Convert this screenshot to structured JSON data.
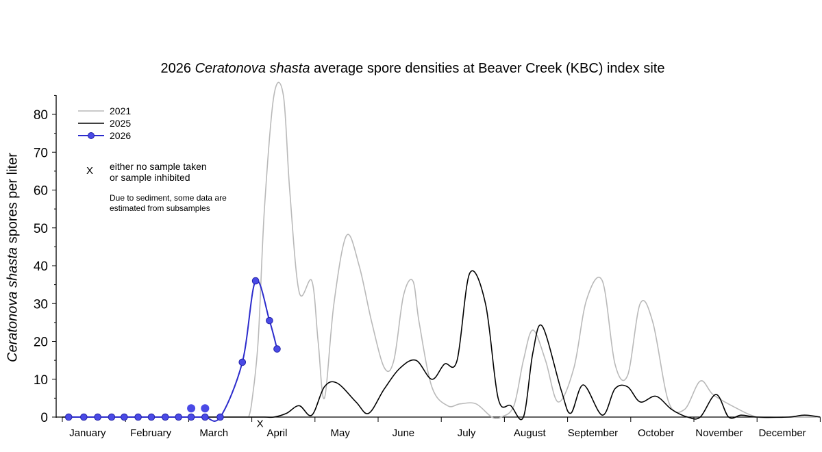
{
  "chart_data": {
    "type": "line",
    "title_parts": {
      "pre": "2026 ",
      "italic": "Ceratonova shasta",
      "post": " average spore densities at Beaver Creek (KBC) index site"
    },
    "ylabel_parts": {
      "italic": "Ceratonova shasta",
      "post": " spores per liter"
    },
    "ylim": [
      0,
      85
    ],
    "yticks": [
      0,
      10,
      20,
      30,
      40,
      50,
      60,
      70,
      80
    ],
    "x_range": [
      0,
      12
    ],
    "x_unit": "months from January 1 (0 = Jan 1, 12 = Dec 31)",
    "months": [
      "January",
      "February",
      "March",
      "April",
      "May",
      "June",
      "July",
      "August",
      "September",
      "October",
      "November",
      "December"
    ],
    "legend": {
      "l2021": "2021",
      "l2025": "2025",
      "l2026": "2026"
    },
    "notes": {
      "x_line1": "either no sample taken",
      "x_line2": "or sample inhibited",
      "sed_line1": "Due to sediment, some data are",
      "sed_line2": "estimated from subsamples"
    },
    "series": [
      {
        "name": "2021",
        "color": "#b9b9b9",
        "x": [
          2.95,
          3.0,
          3.1,
          3.2,
          3.35,
          3.5,
          3.6,
          3.75,
          3.95,
          4.05,
          4.15,
          4.3,
          4.5,
          4.7,
          4.9,
          5.1,
          5.25,
          5.4,
          5.55,
          5.65,
          5.85,
          6.1,
          6.3,
          6.55,
          6.8,
          6.95,
          7.15,
          7.3,
          7.45,
          7.65,
          7.85,
          8.1,
          8.3,
          8.55,
          8.75,
          8.95,
          9.15,
          9.35,
          9.6,
          9.85,
          10.1,
          10.3,
          10.6,
          11.0,
          11.4,
          12.0
        ],
        "y": [
          0,
          4,
          20,
          55,
          85,
          85,
          60,
          33,
          36,
          20,
          5,
          30,
          48,
          40,
          25,
          13,
          15,
          32,
          36,
          25,
          8,
          3,
          3.5,
          3.5,
          0,
          0,
          3,
          15,
          23,
          15,
          4,
          13,
          31,
          36,
          14,
          11,
          30,
          25,
          4,
          2,
          9.5,
          6,
          3,
          0,
          0,
          0
        ]
      },
      {
        "name": "2025",
        "color": "#000000",
        "x": [
          0,
          2.75,
          3.2,
          3.35,
          3.55,
          3.75,
          3.95,
          4.15,
          4.35,
          4.65,
          4.85,
          5.1,
          5.35,
          5.6,
          5.85,
          6.05,
          6.25,
          6.45,
          6.7,
          6.9,
          7.1,
          7.3,
          7.45,
          7.6,
          7.9,
          8.05,
          8.25,
          8.55,
          8.75,
          8.95,
          9.15,
          9.4,
          9.65,
          9.9,
          10.1,
          10.35,
          10.55,
          10.75,
          11.0,
          11.5,
          11.75,
          12.0
        ],
        "y": [
          0,
          0,
          0,
          0,
          1,
          3,
          0.5,
          8,
          9,
          4,
          1,
          7.5,
          13,
          15,
          10,
          14,
          15,
          38,
          30,
          5,
          3,
          0,
          17,
          24,
          7,
          1,
          8.5,
          0.5,
          7.5,
          8,
          4,
          5.5,
          2,
          0,
          0,
          6,
          0,
          0.5,
          0,
          0,
          0.5,
          0
        ]
      },
      {
        "name": "2026",
        "color": "#2b2bcc",
        "marker": "circle",
        "x": [
          0.1,
          0.34,
          0.56,
          0.78,
          0.98,
          1.2,
          1.41,
          1.63,
          1.84,
          2.04,
          2.26,
          2.5,
          2.85,
          3.06,
          3.28,
          3.4
        ],
        "y": [
          0,
          0,
          0,
          0,
          0,
          0,
          0,
          0,
          0,
          0,
          0,
          0,
          14.5,
          36,
          25.5,
          18
        ]
      }
    ],
    "extra_points_2026": {
      "x": [
        2.04,
        2.26
      ],
      "y": [
        2.3,
        2.3
      ]
    },
    "no_sample_markers": {
      "x": [
        3.13
      ],
      "y": [
        -1.5
      ]
    }
  }
}
